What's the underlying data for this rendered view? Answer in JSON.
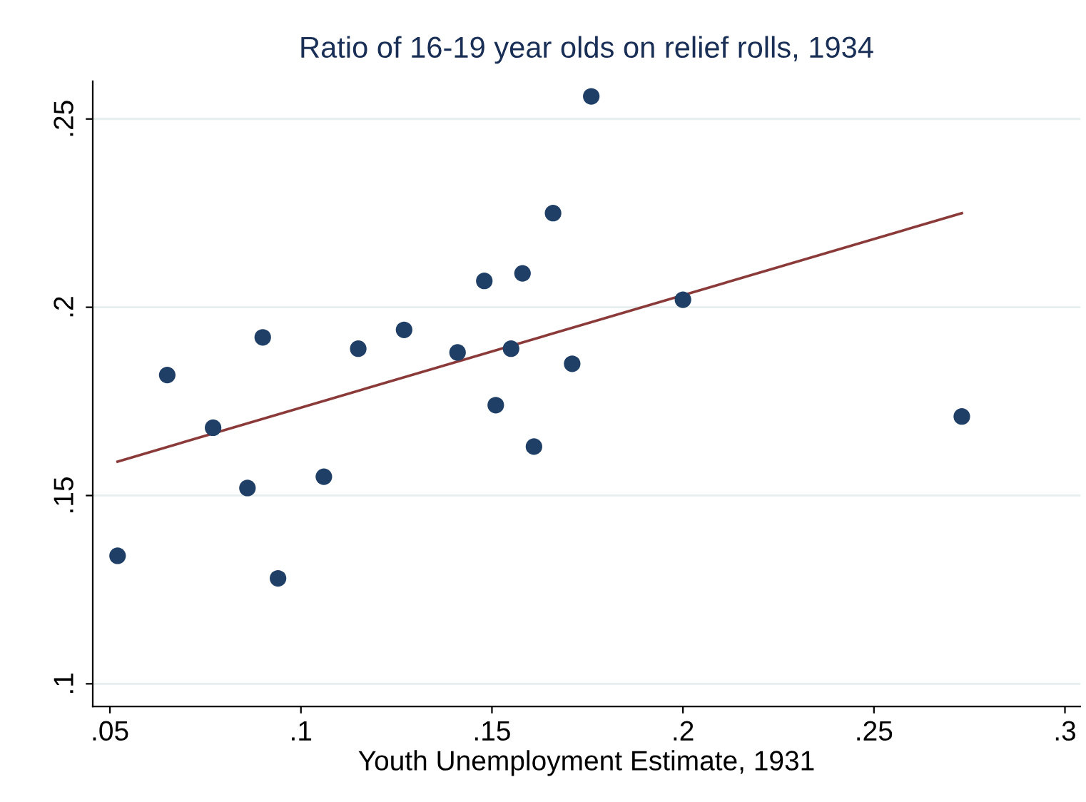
{
  "chart_data": {
    "type": "scatter",
    "title": "Ratio of 16-19 year olds on relief rolls, 1934",
    "xlabel": "Youth Unemployment Estimate, 1931",
    "xlim": [
      0.0455,
      0.304
    ],
    "ylim": [
      0.094,
      0.26
    ],
    "xticks": [
      {
        "value": 0.05,
        "label": ".05"
      },
      {
        "value": 0.1,
        "label": ".1"
      },
      {
        "value": 0.15,
        "label": ".15"
      },
      {
        "value": 0.2,
        "label": ".2"
      },
      {
        "value": 0.25,
        "label": ".25"
      },
      {
        "value": 0.3,
        "label": ".3"
      }
    ],
    "yticks": [
      {
        "value": 0.1,
        "label": ".1"
      },
      {
        "value": 0.15,
        "label": ".15"
      },
      {
        "value": 0.2,
        "label": ".2"
      },
      {
        "value": 0.25,
        "label": ".25"
      }
    ],
    "grid": "y",
    "series": [
      {
        "marker": "circle",
        "color": "#1f3f66",
        "x": [
          0.052,
          0.065,
          0.077,
          0.086,
          0.09,
          0.094,
          0.106,
          0.115,
          0.127,
          0.141,
          0.148,
          0.151,
          0.155,
          0.158,
          0.161,
          0.166,
          0.171,
          0.176,
          0.2,
          0.273
        ],
        "values": [
          0.134,
          0.182,
          0.168,
          0.152,
          0.192,
          0.128,
          0.155,
          0.189,
          0.194,
          0.188,
          0.207,
          0.174,
          0.189,
          0.209,
          0.163,
          0.225,
          0.185,
          0.256,
          0.202,
          0.171
        ]
      },
      {
        "type": "line",
        "color": "#8b3a3a",
        "x": [
          0.052,
          0.273
        ],
        "values": [
          0.159,
          0.225
        ]
      }
    ]
  }
}
